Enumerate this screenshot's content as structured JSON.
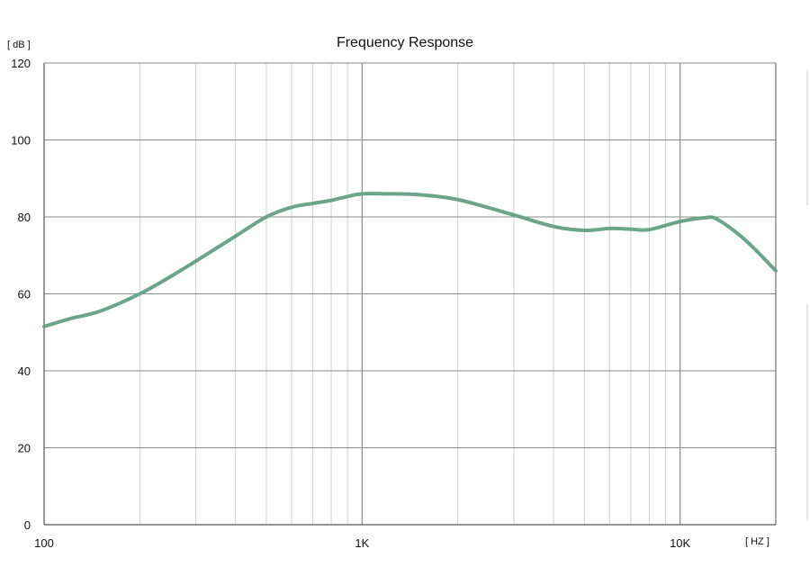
{
  "chart_data": {
    "type": "line",
    "title": "Frequency Response",
    "ylabel": "[ dB ]",
    "xlabel": "[ HZ ]",
    "x_scale": "log",
    "xlim": [
      100,
      20000
    ],
    "ylim": [
      0,
      120
    ],
    "grid": true,
    "x_tick_labels": [
      {
        "value": 100,
        "label": "100"
      },
      {
        "value": 1000,
        "label": "1K"
      },
      {
        "value": 10000,
        "label": "10K"
      }
    ],
    "y_ticks": [
      0,
      20,
      40,
      60,
      80,
      100,
      120
    ],
    "colors": {
      "line": "#6aa58a",
      "grid_major": "#8a8a8a",
      "grid_minor": "#cfcfcf",
      "axis": "#555555"
    },
    "series": [
      {
        "points": [
          [
            100,
            51.5
          ],
          [
            120,
            53.5
          ],
          [
            150,
            55.5
          ],
          [
            200,
            60
          ],
          [
            250,
            64.5
          ],
          [
            300,
            68.5
          ],
          [
            400,
            75
          ],
          [
            500,
            80
          ],
          [
            600,
            82.5
          ],
          [
            700,
            83.5
          ],
          [
            800,
            84.3
          ],
          [
            900,
            85.3
          ],
          [
            1000,
            86
          ],
          [
            1200,
            86
          ],
          [
            1500,
            85.8
          ],
          [
            2000,
            84.5
          ],
          [
            3000,
            80.5
          ],
          [
            4000,
            77.5
          ],
          [
            5000,
            76.5
          ],
          [
            6000,
            77
          ],
          [
            7000,
            76.8
          ],
          [
            8000,
            76.7
          ],
          [
            10000,
            78.8
          ],
          [
            12000,
            79.8
          ],
          [
            13000,
            79.5
          ],
          [
            15000,
            76
          ],
          [
            17000,
            72
          ],
          [
            20000,
            66
          ]
        ]
      }
    ]
  }
}
